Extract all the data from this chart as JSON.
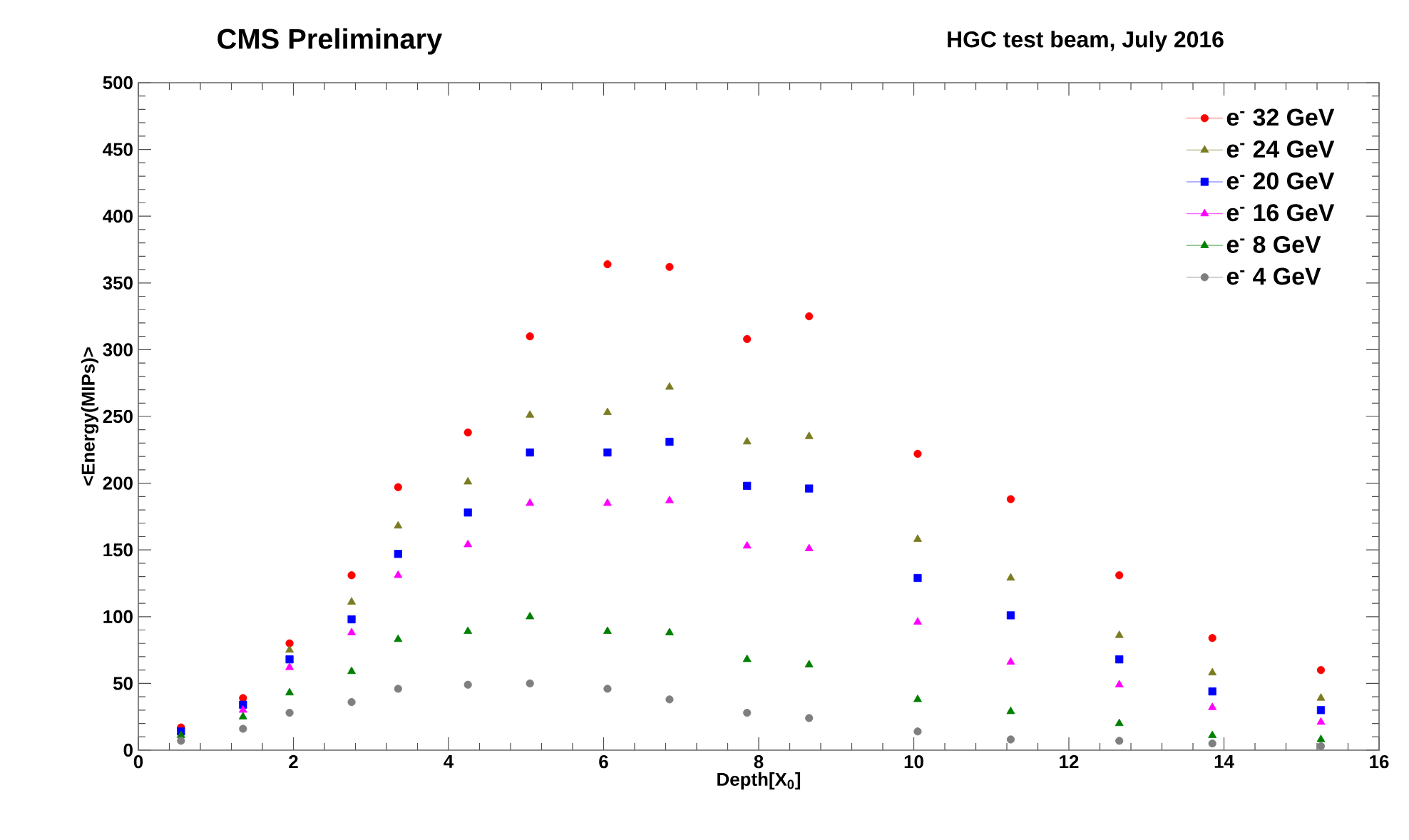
{
  "chart_data": {
    "type": "scatter",
    "title": "CMS Preliminary",
    "subtitle": "HGC test beam, July 2016",
    "xlabel": "Depth[X$_{0}$]",
    "ylabel": "<Energy(MIPs)>",
    "x": [
      0.55,
      1.35,
      1.95,
      2.75,
      3.35,
      4.25,
      5.05,
      6.05,
      6.85,
      7.85,
      8.65,
      10.05,
      11.25,
      12.65,
      13.85,
      15.25
    ],
    "series": [
      {
        "name": "e$^{-}$ 32 GeV",
        "color": "#ff0000",
        "marker": "circle",
        "values": [
          17,
          39,
          80,
          131,
          197,
          238,
          310,
          364,
          362,
          308,
          325,
          222,
          188,
          131,
          84,
          60
        ]
      },
      {
        "name": "e$^{-}$ 24 GeV",
        "color": "#7b7b22",
        "marker": "triangle",
        "values": [
          null,
          null,
          75,
          111,
          168,
          201,
          251,
          253,
          272,
          231,
          235,
          158,
          129,
          86,
          58,
          39
        ]
      },
      {
        "name": "e$^{-}$ 20 GeV",
        "color": "#0000ff",
        "marker": "square",
        "values": [
          14,
          34,
          68,
          98,
          147,
          178,
          223,
          223,
          231,
          198,
          196,
          129,
          101,
          68,
          44,
          30
        ]
      },
      {
        "name": "e$^{-}$ 16 GeV",
        "color": "#ff00ff",
        "marker": "triangle",
        "values": [
          null,
          30,
          62,
          88,
          131,
          154,
          185,
          185,
          187,
          153,
          151,
          96,
          66,
          49,
          32,
          21
        ]
      },
      {
        "name": "e$^{-}$ 8 GeV",
        "color": "#007f00",
        "marker": "triangle",
        "values": [
          11,
          25,
          43,
          59,
          83,
          89,
          100,
          89,
          88,
          68,
          64,
          38,
          29,
          20,
          11,
          8
        ]
      },
      {
        "name": "e$^{-}$ 4 GeV",
        "color": "#7f7f7f",
        "marker": "circle",
        "values": [
          7,
          16,
          28,
          36,
          46,
          49,
          50,
          46,
          38,
          28,
          24,
          14,
          8,
          7,
          5,
          3
        ]
      }
    ],
    "xlim": [
      0,
      16
    ],
    "xticks": [
      0,
      2,
      4,
      6,
      8,
      10,
      12,
      14,
      16
    ],
    "ylim": [
      0,
      500
    ],
    "yticks": [
      0,
      50,
      100,
      150,
      200,
      250,
      300,
      350,
      400,
      450,
      500
    ],
    "grid": false,
    "legend": "top right"
  }
}
